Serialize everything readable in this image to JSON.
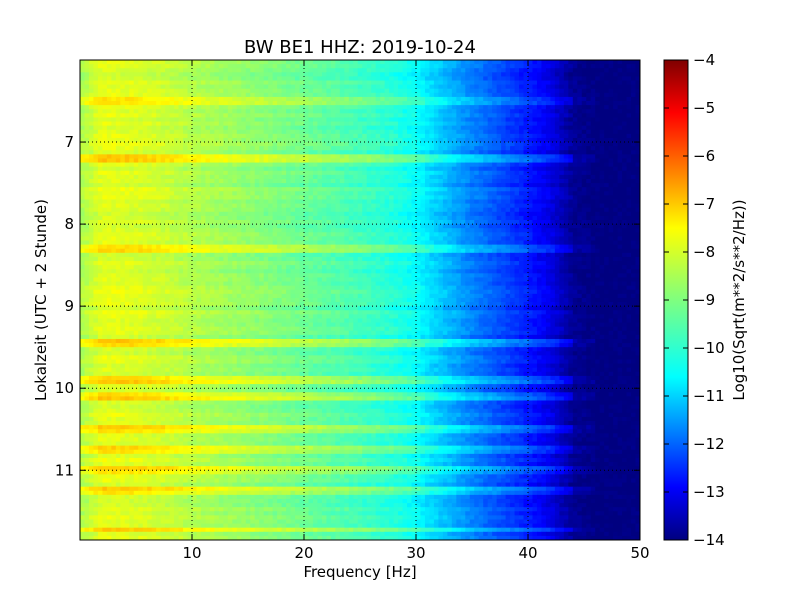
{
  "chart_data": {
    "type": "heatmap",
    "title": "BW BE1 HHZ: 2019-10-24",
    "xlabel": "Frequency [Hz]",
    "ylabel": "Lokalzeit (UTC + 2 Stunde)",
    "xlim": [
      0,
      50
    ],
    "ylim": [
      11.85,
      6.0
    ],
    "y_axis_inverted": true,
    "x_ticks": [
      10,
      20,
      30,
      40,
      50
    ],
    "y_ticks": [
      7,
      8,
      9,
      10,
      11
    ],
    "grid": true,
    "grid_style": "dotted",
    "colormap": "jet",
    "colorbar": {
      "label": "Log10(Sqrt(m**2/s**2/Hz))",
      "range": [
        -14,
        -4
      ],
      "ticks": [
        -4,
        -5,
        -6,
        -7,
        -8,
        -9,
        -10,
        -11,
        -12,
        -13,
        -14
      ]
    },
    "spectrum_profile": {
      "frequency_hz": [
        0,
        2,
        5,
        8,
        10,
        13,
        16,
        20,
        24,
        28,
        30,
        31,
        33,
        35,
        38,
        40,
        42,
        44,
        46,
        50
      ],
      "log_amplitude": [
        -8.6,
        -8.0,
        -8.1,
        -8.3,
        -8.5,
        -8.7,
        -8.9,
        -9.2,
        -9.5,
        -9.9,
        -10.2,
        -10.5,
        -11.0,
        -11.5,
        -12.1,
        -12.5,
        -13.0,
        -13.8,
        -14.0,
        -14.0
      ]
    },
    "bright_bands_hours": [
      6.51,
      7.21,
      8.31,
      9.45,
      9.89,
      10.08,
      10.52,
      10.73,
      11.02,
      11.24,
      11.72
    ]
  }
}
